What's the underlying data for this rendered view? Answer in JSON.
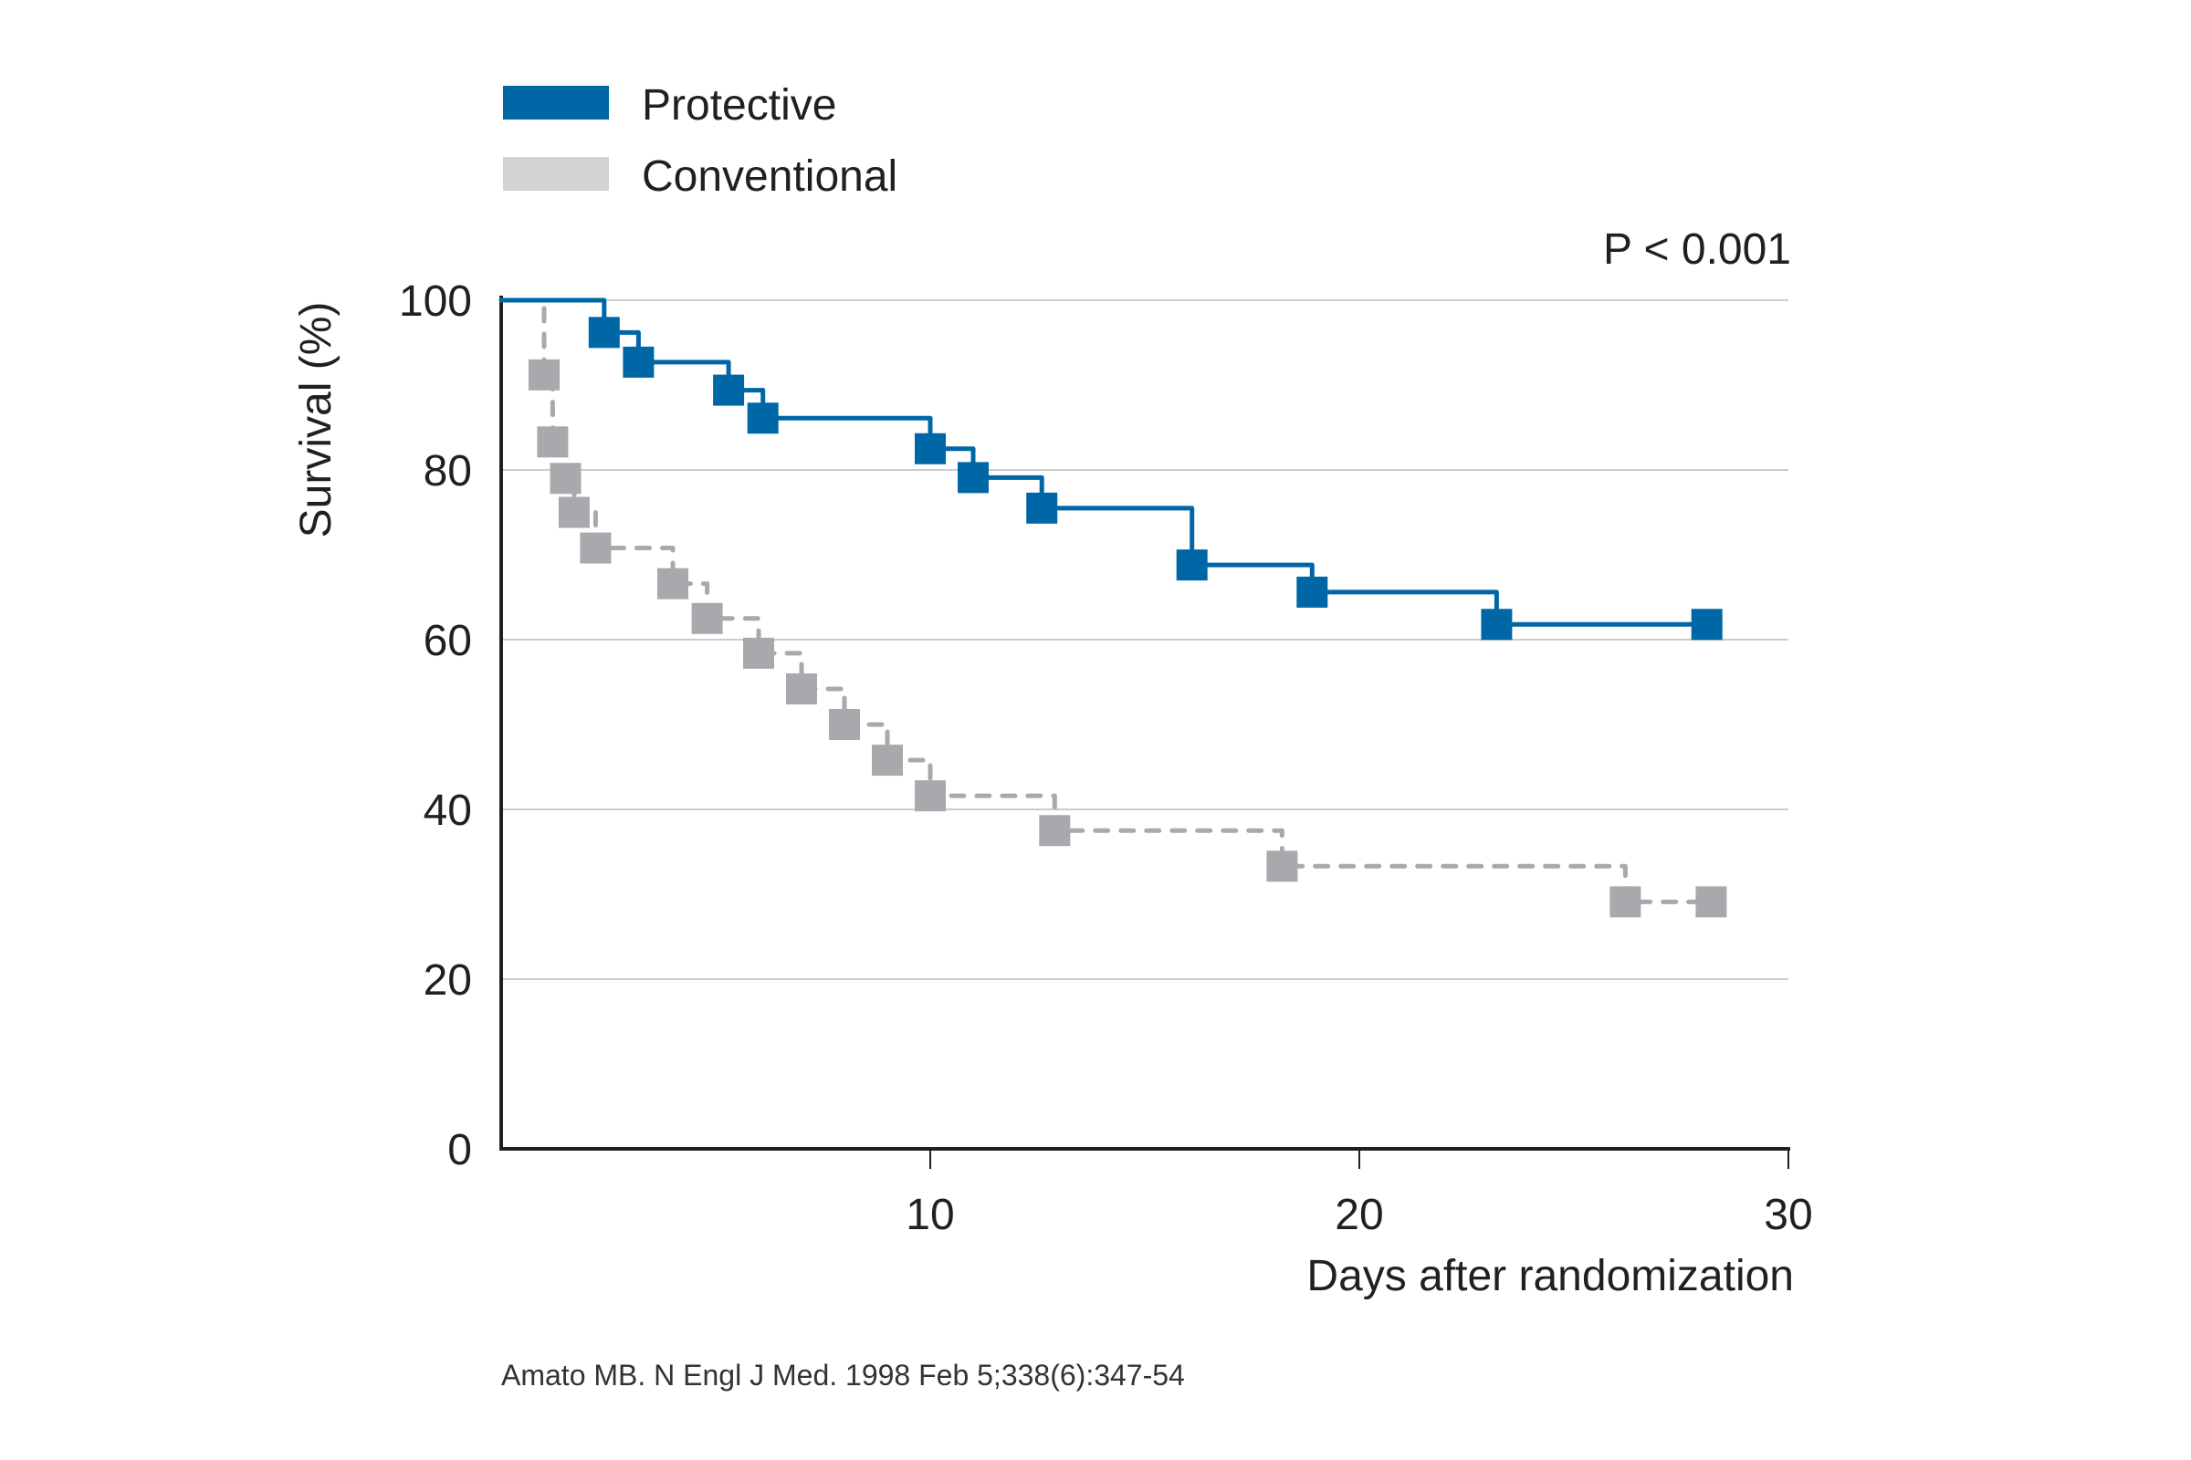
{
  "colors": {
    "protective": "#0067A7",
    "conventional": "#A7A9AC",
    "conventional_legend": "#D1D3D4",
    "grid": "#CCCCCC",
    "axis": "#231F20"
  },
  "legend": {
    "items": [
      {
        "label": "Protective",
        "swatch": "#0067A7"
      },
      {
        "label": "Conventional",
        "swatch": "#D1D3D4"
      }
    ]
  },
  "annotation": {
    "p_value": "P < 0.001"
  },
  "citation": "Amato MB. N Engl J Med. 1998 Feb 5;338(6):347-54",
  "chart_data": {
    "type": "line",
    "subtype": "kaplan-meier step",
    "title": "",
    "xlabel": "Days after randomization",
    "ylabel": "Survival (%)",
    "xlim": [
      0,
      30
    ],
    "ylim": [
      0,
      100
    ],
    "x_ticks": [
      10,
      20,
      30
    ],
    "y_ticks": [
      0,
      20,
      40,
      60,
      80,
      100
    ],
    "grid": "horizontal",
    "legend_position": "top-left",
    "annotations": [
      "P < 0.001"
    ],
    "series": [
      {
        "name": "Protective",
        "line_style": "solid",
        "points": [
          {
            "day": 0,
            "survival": 100
          },
          {
            "day": 2.4,
            "survival": 96.2
          },
          {
            "day": 3.2,
            "survival": 92.7
          },
          {
            "day": 5.3,
            "survival": 89.4
          },
          {
            "day": 6.1,
            "survival": 86.1
          },
          {
            "day": 10.0,
            "survival": 82.5
          },
          {
            "day": 11.0,
            "survival": 79.1
          },
          {
            "day": 12.6,
            "survival": 75.5
          },
          {
            "day": 16.1,
            "survival": 68.8
          },
          {
            "day": 18.9,
            "survival": 65.6
          },
          {
            "day": 23.2,
            "survival": 61.8
          },
          {
            "day": 28.1,
            "survival": 61.8
          }
        ]
      },
      {
        "name": "Conventional",
        "line_style": "dashed",
        "points": [
          {
            "day": 0,
            "survival": 100
          },
          {
            "day": 1.0,
            "survival": 91.2
          },
          {
            "day": 1.2,
            "survival": 83.3
          },
          {
            "day": 1.5,
            "survival": 79.0
          },
          {
            "day": 1.7,
            "survival": 75.0
          },
          {
            "day": 2.2,
            "survival": 70.8
          },
          {
            "day": 4.0,
            "survival": 66.6
          },
          {
            "day": 4.8,
            "survival": 62.5
          },
          {
            "day": 6.0,
            "survival": 58.4
          },
          {
            "day": 7.0,
            "survival": 54.2
          },
          {
            "day": 8.0,
            "survival": 50.0
          },
          {
            "day": 9.0,
            "survival": 45.8
          },
          {
            "day": 10.0,
            "survival": 41.6
          },
          {
            "day": 12.9,
            "survival": 37.5
          },
          {
            "day": 18.2,
            "survival": 33.3
          },
          {
            "day": 26.2,
            "survival": 29.1
          },
          {
            "day": 28.2,
            "survival": 29.1
          }
        ]
      }
    ]
  }
}
